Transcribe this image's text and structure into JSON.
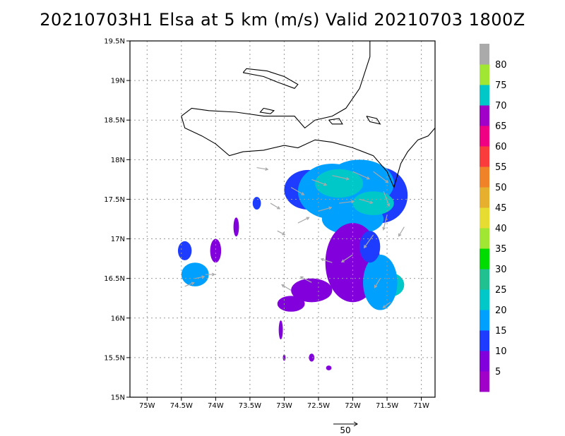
{
  "chart_data": {
    "type": "heatmap",
    "title": "20210703H1 Elsa at 5 km (m/s) Valid 20210703  1800Z",
    "xlim": [
      -75.25,
      -70.8
    ],
    "ylim": [
      15.0,
      19.5
    ],
    "x_ticks": [
      {
        "value": -75.0,
        "label": "75W"
      },
      {
        "value": -74.5,
        "label": "74.5W"
      },
      {
        "value": -74.0,
        "label": "74W"
      },
      {
        "value": -73.5,
        "label": "73.5W"
      },
      {
        "value": -73.0,
        "label": "73W"
      },
      {
        "value": -72.5,
        "label": "72.5W"
      },
      {
        "value": -72.0,
        "label": "72W"
      },
      {
        "value": -71.5,
        "label": "71.5W"
      },
      {
        "value": -71.0,
        "label": "71W"
      }
    ],
    "y_ticks": [
      {
        "value": 15.0,
        "label": "15N"
      },
      {
        "value": 15.5,
        "label": "15.5N"
      },
      {
        "value": 16.0,
        "label": "16N"
      },
      {
        "value": 16.5,
        "label": "16.5N"
      },
      {
        "value": 17.0,
        "label": "17N"
      },
      {
        "value": 17.5,
        "label": "17.5N"
      },
      {
        "value": 18.0,
        "label": "18N"
      },
      {
        "value": 18.5,
        "label": "18.5N"
      },
      {
        "value": 19.0,
        "label": "19N"
      },
      {
        "value": 19.5,
        "label": "19.5N"
      }
    ],
    "grid": true,
    "colorbar": {
      "colors": [
        "#a000c8",
        "#8200dc",
        "#1e3cff",
        "#00a0ff",
        "#00c8c8",
        "#20c090",
        "#00dc00",
        "#a0e632",
        "#e6dc32",
        "#e6af2d",
        "#f08228",
        "#fa3c3c",
        "#f00082",
        "#a000c8",
        "#00c8c8",
        "#a0e632",
        "#aaaaaa"
      ],
      "labels": [
        "5",
        "10",
        "15",
        "20",
        "25",
        "30",
        "35",
        "40",
        "45",
        "50",
        "55",
        "60",
        "65",
        "70",
        "75",
        "80"
      ]
    },
    "reference_vector": {
      "value": 50,
      "label": "50"
    },
    "coastline": [
      [
        [
          -73.6,
          19.1
        ],
        [
          -73.3,
          19.05
        ],
        [
          -73.1,
          18.98
        ],
        [
          -72.85,
          18.9
        ],
        [
          -72.8,
          18.95
        ],
        [
          -73.0,
          19.05
        ],
        [
          -73.25,
          19.12
        ],
        [
          -73.55,
          19.15
        ],
        [
          -73.6,
          19.1
        ]
      ],
      [
        [
          -74.5,
          18.55
        ],
        [
          -74.35,
          18.65
        ],
        [
          -74.1,
          18.62
        ],
        [
          -73.7,
          18.6
        ],
        [
          -73.3,
          18.55
        ],
        [
          -72.85,
          18.55
        ],
        [
          -72.7,
          18.4
        ],
        [
          -72.55,
          18.5
        ],
        [
          -72.3,
          18.55
        ],
        [
          -72.1,
          18.65
        ],
        [
          -71.9,
          18.9
        ],
        [
          -71.75,
          19.3
        ],
        [
          -71.75,
          19.5
        ]
      ],
      [
        [
          -74.5,
          18.55
        ],
        [
          -74.45,
          18.4
        ],
        [
          -74.2,
          18.3
        ],
        [
          -74.0,
          18.2
        ],
        [
          -73.8,
          18.05
        ],
        [
          -73.6,
          18.1
        ],
        [
          -73.3,
          18.12
        ],
        [
          -73.0,
          18.18
        ],
        [
          -72.8,
          18.15
        ],
        [
          -72.55,
          18.25
        ],
        [
          -72.3,
          18.22
        ],
        [
          -72.0,
          18.15
        ],
        [
          -71.7,
          18.05
        ],
        [
          -71.5,
          17.85
        ],
        [
          -71.4,
          17.65
        ],
        [
          -71.3,
          17.95
        ],
        [
          -71.2,
          18.1
        ],
        [
          -71.05,
          18.25
        ],
        [
          -70.9,
          18.3
        ],
        [
          -70.8,
          18.4
        ]
      ],
      [
        [
          -73.3,
          18.65
        ],
        [
          -73.15,
          18.62
        ],
        [
          -73.2,
          18.58
        ],
        [
          -73.35,
          18.6
        ],
        [
          -73.3,
          18.65
        ]
      ],
      [
        [
          -72.35,
          18.5
        ],
        [
          -72.2,
          18.52
        ],
        [
          -72.15,
          18.45
        ],
        [
          -72.3,
          18.45
        ],
        [
          -72.35,
          18.5
        ]
      ],
      [
        [
          -71.8,
          18.55
        ],
        [
          -71.65,
          18.52
        ],
        [
          -71.6,
          18.45
        ],
        [
          -71.75,
          18.48
        ],
        [
          -71.8,
          18.55
        ]
      ]
    ],
    "wind_patches": [
      {
        "speed": 10,
        "lon": -72.65,
        "lat": 17.62,
        "rx": 0.35,
        "ry": 0.25
      },
      {
        "speed": 10,
        "lon": -71.6,
        "lat": 17.55,
        "rx": 0.4,
        "ry": 0.35
      },
      {
        "speed": 15,
        "lon": -72.3,
        "lat": 17.6,
        "rx": 0.5,
        "ry": 0.35
      },
      {
        "speed": 15,
        "lon": -71.9,
        "lat": 17.7,
        "rx": 0.5,
        "ry": 0.3
      },
      {
        "speed": 15,
        "lon": -72.0,
        "lat": 17.25,
        "rx": 0.45,
        "ry": 0.2
      },
      {
        "speed": 20,
        "lon": -72.2,
        "lat": 17.7,
        "rx": 0.35,
        "ry": 0.18
      },
      {
        "speed": 20,
        "lon": -71.7,
        "lat": 17.45,
        "rx": 0.3,
        "ry": 0.15
      },
      {
        "speed": 20,
        "lon": -71.45,
        "lat": 16.42,
        "rx": 0.2,
        "ry": 0.15
      },
      {
        "speed": 5,
        "lon": -72.0,
        "lat": 16.7,
        "rx": 0.4,
        "ry": 0.5
      },
      {
        "speed": 5,
        "lon": -72.6,
        "lat": 16.35,
        "rx": 0.3,
        "ry": 0.15
      },
      {
        "speed": 5,
        "lon": -72.9,
        "lat": 16.18,
        "rx": 0.2,
        "ry": 0.1
      },
      {
        "speed": 15,
        "lon": -71.6,
        "lat": 16.45,
        "rx": 0.25,
        "ry": 0.35
      },
      {
        "speed": 10,
        "lon": -71.75,
        "lat": 16.9,
        "rx": 0.15,
        "ry": 0.2
      },
      {
        "speed": 15,
        "lon": -74.3,
        "lat": 16.55,
        "rx": 0.2,
        "ry": 0.15
      },
      {
        "speed": 10,
        "lon": -74.45,
        "lat": 16.85,
        "rx": 0.1,
        "ry": 0.12
      },
      {
        "speed": 5,
        "lon": -74.0,
        "lat": 16.85,
        "rx": 0.08,
        "ry": 0.15
      },
      {
        "speed": 5,
        "lon": -73.7,
        "lat": 17.15,
        "rx": 0.04,
        "ry": 0.12
      },
      {
        "speed": 10,
        "lon": -73.4,
        "lat": 17.45,
        "rx": 0.06,
        "ry": 0.08
      },
      {
        "speed": 5,
        "lon": -73.05,
        "lat": 15.85,
        "rx": 0.03,
        "ry": 0.12
      },
      {
        "speed": 5,
        "lon": -73.0,
        "lat": 15.5,
        "rx": 0.02,
        "ry": 0.04
      },
      {
        "speed": 5,
        "lon": -72.6,
        "lat": 15.5,
        "rx": 0.04,
        "ry": 0.05
      },
      {
        "speed": 5,
        "lon": -72.35,
        "lat": 15.37,
        "rx": 0.04,
        "ry": 0.03
      }
    ],
    "wind_vectors": [
      {
        "lon": -72.9,
        "lat": 17.65,
        "u": 14,
        "v": -8
      },
      {
        "lon": -72.6,
        "lat": 17.75,
        "u": 16,
        "v": -6
      },
      {
        "lon": -72.3,
        "lat": 17.8,
        "u": 18,
        "v": -4
      },
      {
        "lon": -72.0,
        "lat": 17.85,
        "u": 18,
        "v": -8
      },
      {
        "lon": -71.7,
        "lat": 17.85,
        "u": 16,
        "v": -12
      },
      {
        "lon": -71.55,
        "lat": 17.6,
        "u": 6,
        "v": -16
      },
      {
        "lon": -71.5,
        "lat": 17.3,
        "u": -4,
        "v": -16
      },
      {
        "lon": -71.7,
        "lat": 17.05,
        "u": -10,
        "v": -14
      },
      {
        "lon": -72.0,
        "lat": 16.8,
        "u": -12,
        "v": -8
      },
      {
        "lon": -72.3,
        "lat": 16.7,
        "u": -12,
        "v": 4
      },
      {
        "lon": -72.6,
        "lat": 16.45,
        "u": -12,
        "v": 6
      },
      {
        "lon": -72.9,
        "lat": 16.35,
        "u": -10,
        "v": 6
      },
      {
        "lon": -72.8,
        "lat": 17.2,
        "u": 12,
        "v": 6
      },
      {
        "lon": -72.5,
        "lat": 17.35,
        "u": 14,
        "v": 4
      },
      {
        "lon": -72.2,
        "lat": 17.45,
        "u": 16,
        "v": 2
      },
      {
        "lon": -71.9,
        "lat": 17.5,
        "u": 14,
        "v": -4
      },
      {
        "lon": -71.6,
        "lat": 16.5,
        "u": -6,
        "v": -10
      },
      {
        "lon": -71.45,
        "lat": 16.2,
        "u": -8,
        "v": -6
      },
      {
        "lon": -73.2,
        "lat": 17.45,
        "u": 10,
        "v": -6
      },
      {
        "lon": -73.4,
        "lat": 17.9,
        "u": 12,
        "v": -2
      },
      {
        "lon": -74.3,
        "lat": 16.5,
        "u": 10,
        "v": 2
      },
      {
        "lon": -74.45,
        "lat": 16.4,
        "u": 10,
        "v": 4
      },
      {
        "lon": -74.15,
        "lat": 16.55,
        "u": 10,
        "v": 0
      },
      {
        "lon": -73.1,
        "lat": 17.1,
        "u": 8,
        "v": -4
      },
      {
        "lon": -71.25,
        "lat": 17.15,
        "u": -6,
        "v": -10
      }
    ]
  }
}
